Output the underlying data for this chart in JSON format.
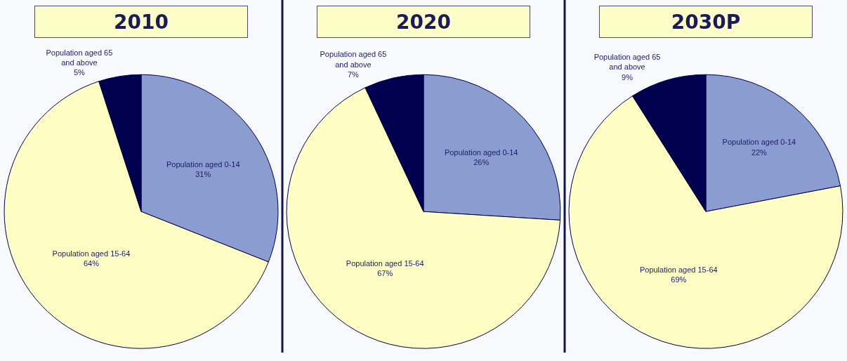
{
  "chart_data": [
    {
      "type": "pie",
      "title": "2010",
      "categories": [
        "Population aged 0-14",
        "Population aged 15-64",
        "Population aged 65 and above"
      ],
      "values": [
        31,
        64,
        5
      ],
      "value_labels": [
        "31%",
        "64%",
        "5%"
      ],
      "colors": [
        "#8b9dd0",
        "#fdfdc4",
        "#00004f"
      ]
    },
    {
      "type": "pie",
      "title": "2020",
      "categories": [
        "Population aged 0-14",
        "Population aged 15-64",
        "Population aged 65 and above"
      ],
      "values": [
        26,
        67,
        7
      ],
      "value_labels": [
        "26%",
        "67%",
        "7%"
      ],
      "colors": [
        "#8b9dd0",
        "#fdfdc4",
        "#00004f"
      ]
    },
    {
      "type": "pie",
      "title": "2030P",
      "categories": [
        "Population aged 0-14",
        "Population aged 15-64",
        "Population aged 65 and above"
      ],
      "values": [
        22,
        69,
        9
      ],
      "value_labels": [
        "22%",
        "69%",
        "9%"
      ],
      "colors": [
        "#8b9dd0",
        "#fdfdc4",
        "#00004f"
      ]
    }
  ]
}
